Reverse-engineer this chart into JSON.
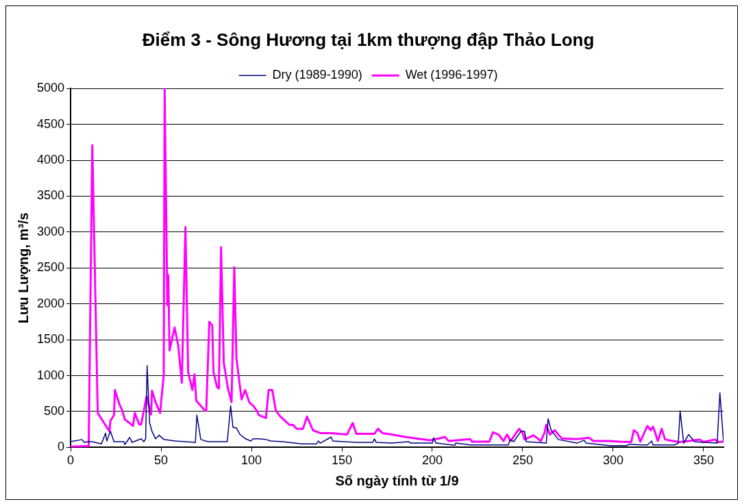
{
  "chart_data": {
    "type": "line",
    "title": "Điểm 3 - Sông Hương tại 1km thượng đập Thảo Long",
    "xlabel": "Số ngày tính từ 1/9",
    "ylabel": "Lưu Lượng, m³/s",
    "xlim": [
      0,
      361
    ],
    "xticks": [
      0,
      50,
      100,
      150,
      200,
      250,
      300,
      350
    ],
    "ylim": [
      0,
      5000
    ],
    "yticks": [
      0,
      500,
      1000,
      1500,
      2000,
      2500,
      3000,
      3500,
      4000,
      4500,
      5000
    ],
    "grid": "y",
    "legend": "top",
    "marker": "none",
    "line_style": "solid",
    "series": [
      {
        "name": "Dry (1989-1990)",
        "color": "#000080",
        "x": [
          0,
          6.3,
          7.5,
          10,
          12,
          17,
          18,
          19.3,
          20,
          22,
          24,
          29.5,
          30,
          32.7,
          34,
          39,
          40.5,
          41.5,
          42.3,
          43.7,
          45,
          47,
          49,
          51.6,
          58,
          69,
          69.8,
          72,
          76,
          86.6,
          88.5,
          89.8,
          91.7,
          93.7,
          96.4,
          99.6,
          101,
          104,
          108,
          110.8,
          117.3,
          128,
          136,
          137,
          138,
          143,
          144,
          145,
          158,
          167,
          168,
          169,
          177.6,
          187,
          188,
          200,
          200.7,
          202,
          212.5,
          213,
          221,
          242,
          243,
          245,
          249,
          251,
          252,
          263,
          264,
          265.7,
          269.7,
          280,
          284,
          285,
          298,
          307.5,
          309,
          315.4,
          319,
          321.3,
          322,
          328.7,
          334,
          336,
          337,
          339,
          341.7,
          345,
          357.5,
          359,
          361
        ],
        "values": [
          80,
          110,
          70,
          80,
          80,
          50,
          110,
          200,
          90,
          225,
          80,
          80,
          40,
          140,
          70,
          120,
          80,
          120,
          1140,
          340,
          225,
          120,
          170,
          110,
          90,
          70,
          450,
          110,
          80,
          80,
          580,
          280,
          270,
          180,
          125,
          90,
          120,
          120,
          110,
          90,
          80,
          50,
          50,
          90,
          60,
          130,
          145,
          90,
          70,
          70,
          120,
          70,
          60,
          80,
          60,
          60,
          135,
          60,
          30,
          60,
          35,
          35,
          110,
          80,
          225,
          225,
          80,
          60,
          400,
          240,
          110,
          60,
          100,
          60,
          25,
          25,
          45,
          35,
          35,
          90,
          35,
          35,
          35,
          60,
          510,
          60,
          180,
          80,
          60,
          760,
          80
        ]
      },
      {
        "name": "Wet (1996-1997)",
        "color": "#ff00ff",
        "x": [
          0,
          10,
          12,
          15,
          17,
          21.5,
          22,
          24,
          24.5,
          27,
          28.5,
          30,
          34.5,
          35.5,
          38,
          39,
          42,
          44.5,
          45,
          47,
          49.5,
          51.5,
          52,
          53.5,
          54,
          54.7,
          57.5,
          59.5,
          61.5,
          63.5,
          65,
          67.3,
          68.5,
          69.5,
          74,
          75,
          76.7,
          78.3,
          79,
          81,
          82,
          83.2,
          84.7,
          87,
          89,
          90.5,
          91.7,
          94.5,
          96.5,
          99,
          101,
          103,
          104,
          108,
          109.5,
          111.5,
          113.5,
          116,
          121,
          123,
          125,
          128.5,
          130.7,
          134,
          138,
          143.6,
          152.8,
          156,
          158,
          168,
          170,
          172.4,
          177.6,
          185.4,
          198.8,
          207,
          209,
          221,
          222,
          231.5,
          233.5,
          236.6,
          239.4,
          241.3,
          243.3,
          248,
          250,
          251,
          256,
          260,
          262,
          263,
          265,
          267.7,
          269.6,
          271.6,
          280,
          286.6,
          289,
          298,
          303.5,
          310,
          311.4,
          313.4,
          315,
          318.9,
          320.8,
          322,
          323.3,
          324.7,
          326.8,
          328.7,
          336.6,
          339,
          348,
          349.6,
          356.3,
          358,
          361
        ],
        "values": [
          10,
          20,
          4210,
          480,
          400,
          225,
          370,
          450,
          800,
          600,
          520,
          390,
          300,
          480,
          320,
          320,
          710,
          460,
          790,
          630,
          480,
          1010,
          4990,
          1980,
          2400,
          1350,
          1670,
          1420,
          900,
          3070,
          1050,
          800,
          1020,
          650,
          520,
          510,
          1750,
          1700,
          1050,
          840,
          820,
          2790,
          1180,
          820,
          630,
          2510,
          1240,
          670,
          800,
          620,
          580,
          510,
          450,
          410,
          800,
          800,
          510,
          430,
          315,
          315,
          260,
          260,
          430,
          240,
          200,
          200,
          180,
          340,
          190,
          190,
          260,
          200,
          180,
          145,
          100,
          145,
          90,
          115,
          80,
          80,
          210,
          180,
          90,
          180,
          90,
          260,
          200,
          110,
          170,
          90,
          200,
          315,
          180,
          240,
          180,
          125,
          115,
          135,
          90,
          90,
          80,
          75,
          240,
          200,
          80,
          300,
          240,
          290,
          200,
          90,
          260,
          110,
          75,
          80,
          110,
          75,
          110,
          75,
          80
        ]
      }
    ]
  }
}
